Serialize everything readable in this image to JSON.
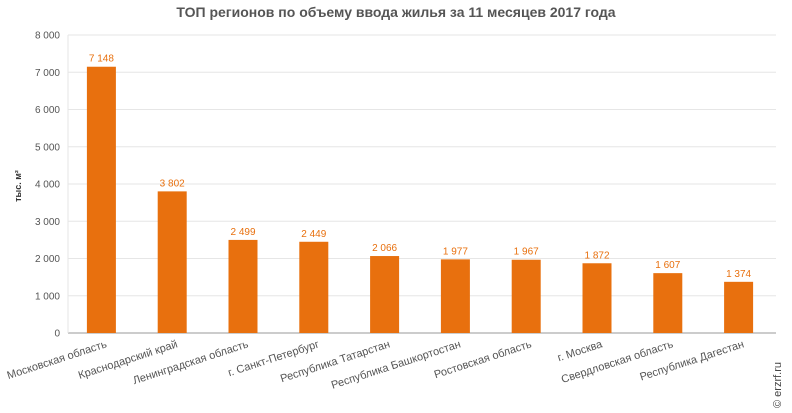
{
  "chart_data": {
    "type": "bar",
    "title": "ТОП регионов по объему ввода жилья за 11 месяцев 2017 года",
    "ylabel": "тыс. м²",
    "xlabel": "",
    "ylim": [
      0,
      8000
    ],
    "yticks": [
      {
        "value": 0,
        "label": "0"
      },
      {
        "value": 1000,
        "label": "1 000"
      },
      {
        "value": 2000,
        "label": "2 000"
      },
      {
        "value": 3000,
        "label": "3 000"
      },
      {
        "value": 4000,
        "label": "4 000"
      },
      {
        "value": 5000,
        "label": "5 000"
      },
      {
        "value": 6000,
        "label": "6 000"
      },
      {
        "value": 7000,
        "label": "7 000"
      },
      {
        "value": 8000,
        "label": "8 000"
      }
    ],
    "categories": [
      "Московская область",
      "Краснодарский край",
      "Ленинградская область",
      "г. Санкт-Петербург",
      "Республика Татарстан",
      "Республика Башкортостан",
      "Ростовская область",
      "г. Москва",
      "Свердловская область",
      "Республика Дагестан"
    ],
    "values": [
      7148,
      3802,
      2499,
      2449,
      2066,
      1977,
      1967,
      1872,
      1607,
      1374
    ],
    "value_labels": [
      "7 148",
      "3 802",
      "2 499",
      "2 449",
      "2 066",
      "1 977",
      "1 967",
      "1 872",
      "1 607",
      "1 374"
    ],
    "bar_color": "#e8700e",
    "grid": true,
    "legend": "none"
  },
  "copyright": "© erzrf.ru"
}
